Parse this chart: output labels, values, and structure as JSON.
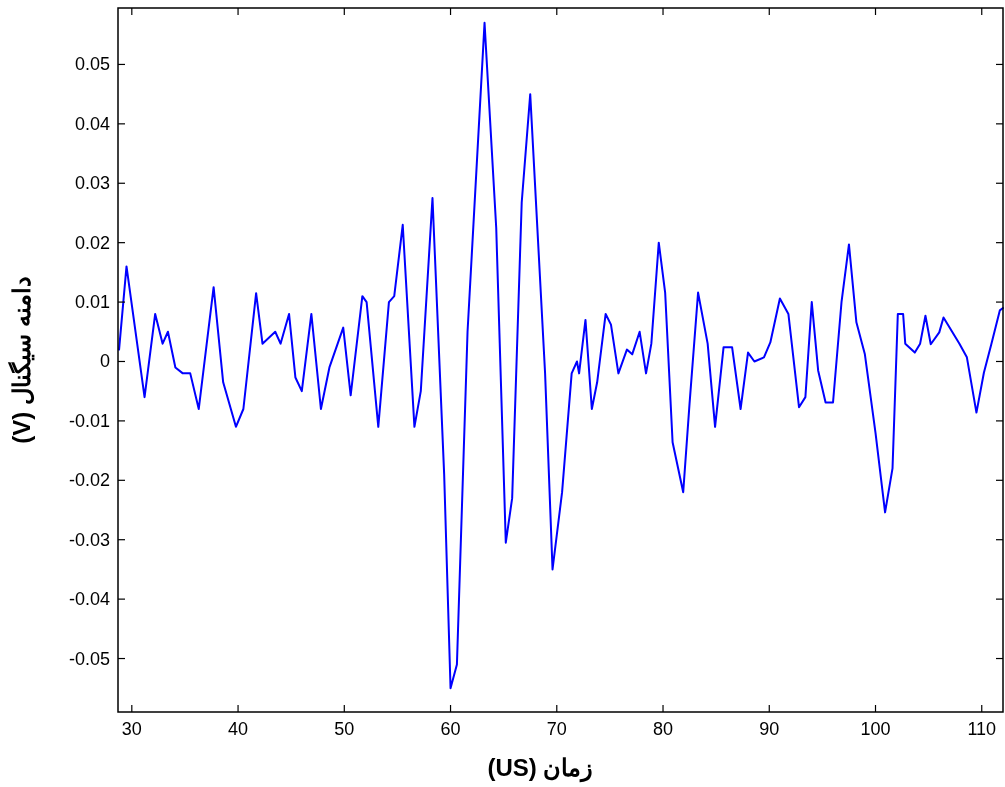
{
  "chart_data": {
    "type": "line",
    "xlabel": "زمان (US)",
    "ylabel": "دامنه سیگنال (V)",
    "xlim": [
      28.7,
      112
    ],
    "ylim": [
      -0.059,
      0.0595
    ],
    "xticks": [
      30,
      40,
      50,
      60,
      70,
      80,
      90,
      100,
      110
    ],
    "yticks": [
      -0.05,
      -0.04,
      -0.03,
      -0.02,
      -0.01,
      0,
      0.01,
      0.02,
      0.03,
      0.04,
      0.05
    ],
    "x": [
      28.8,
      29.5,
      31.2,
      32.2,
      32.9,
      33.4,
      34.1,
      34.8,
      35.5,
      36.3,
      37.7,
      38.6,
      39.8,
      40.5,
      41.7,
      42.3,
      43.5,
      44.0,
      44.8,
      45.4,
      46.0,
      46.9,
      47.8,
      48.6,
      49.9,
      50.6,
      51.7,
      52.1,
      53.2,
      54.2,
      54.7,
      55.5,
      56.6,
      57.2,
      58.3,
      59.4,
      60.0,
      60.6,
      61.6,
      63.2,
      64.3,
      65.2,
      65.8,
      66.7,
      67.5,
      68.9,
      69.6,
      70.5,
      71.4,
      71.9,
      72.1,
      72.7,
      73.3,
      73.8,
      74.6,
      75.1,
      75.8,
      76.6,
      77.1,
      77.8,
      78.4,
      78.9,
      79.6,
      80.2,
      80.9,
      81.9,
      82.5,
      83.3,
      84.2,
      84.9,
      85.7,
      86.5,
      87.3,
      88.0,
      88.6,
      89.5,
      90.1,
      91.0,
      91.8,
      92.8,
      93.4,
      94.0,
      94.6,
      95.3,
      96.0,
      96.8,
      97.5,
      98.2,
      99.0,
      100.0,
      100.9,
      101.6,
      102.1,
      102.6,
      102.8,
      103.7,
      104.2,
      104.7,
      105.2,
      106.0,
      106.4,
      107.9,
      108.6,
      109.5,
      110.2,
      110.9,
      111.7,
      112.0
    ],
    "series": [
      {
        "color": "#0000ff",
        "values": [
          0.002,
          0.016,
          -0.006,
          0.008,
          0.003,
          0.005,
          -0.001,
          -0.002,
          -0.002,
          -0.008,
          0.0125,
          -0.0035,
          -0.011,
          -0.008,
          0.0115,
          0.003,
          0.005,
          0.003,
          0.008,
          -0.0027,
          -0.005,
          0.008,
          -0.008,
          -0.001,
          0.0057,
          -0.0057,
          0.011,
          0.01,
          -0.011,
          0.01,
          0.011,
          0.023,
          -0.011,
          -0.005,
          0.0275,
          -0.019,
          -0.055,
          -0.051,
          0.005,
          0.057,
          0.0225,
          -0.0305,
          -0.023,
          0.0268,
          0.045,
          -0.002,
          -0.035,
          -0.022,
          -0.002,
          0.0,
          -0.002,
          0.007,
          -0.008,
          -0.0035,
          0.008,
          0.0062,
          -0.002,
          0.002,
          0.0012,
          0.005,
          -0.002,
          0.003,
          0.02,
          0.0116,
          -0.0136,
          -0.022,
          -0.007,
          0.0116,
          0.003,
          -0.011,
          0.0024,
          0.0024,
          -0.008,
          0.0015,
          0.0,
          0.0007,
          0.0032,
          0.0106,
          0.008,
          -0.0077,
          -0.006,
          0.01,
          -0.0015,
          -0.0069,
          -0.0069,
          0.01,
          0.0197,
          0.0066,
          0.0012,
          -0.012,
          -0.0254,
          -0.018,
          0.008,
          0.008,
          0.003,
          0.0015,
          0.003,
          0.0077,
          0.0029,
          0.0049,
          0.0074,
          0.003,
          0.0007,
          -0.0086,
          -0.0019,
          0.0029,
          0.0086,
          0.009
        ]
      }
    ]
  }
}
